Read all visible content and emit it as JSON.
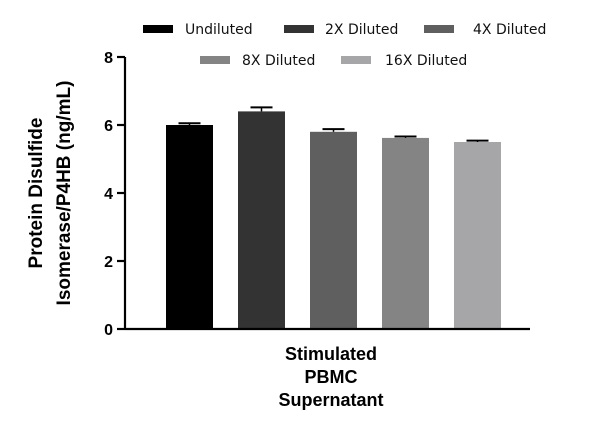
{
  "chart_data": {
    "type": "bar",
    "title": "",
    "xlabel": "",
    "ylabel_lines": [
      "Protein Disulfide",
      "Isomerase/P4HB (ng/mL)"
    ],
    "category_lines": [
      "Stimulated",
      "PBMC",
      "Supernatant"
    ],
    "ylim": [
      0,
      8
    ],
    "yticks": [
      0,
      2,
      4,
      6,
      8
    ],
    "grid": false,
    "legend_position": "top",
    "series": [
      {
        "name": "Undiluted",
        "value": 6.0,
        "error": 0.05,
        "color": "#000000"
      },
      {
        "name": "2X Diluted",
        "value": 6.4,
        "error": 0.12,
        "color": "#333333"
      },
      {
        "name": "4X Diluted",
        "value": 5.8,
        "error": 0.08,
        "color": "#5f5f5f"
      },
      {
        "name": "8X Diluted",
        "value": 5.62,
        "error": 0.04,
        "color": "#848484"
      },
      {
        "name": "16X Diluted",
        "value": 5.5,
        "error": 0.04,
        "color": "#a6a6a8"
      }
    ]
  }
}
